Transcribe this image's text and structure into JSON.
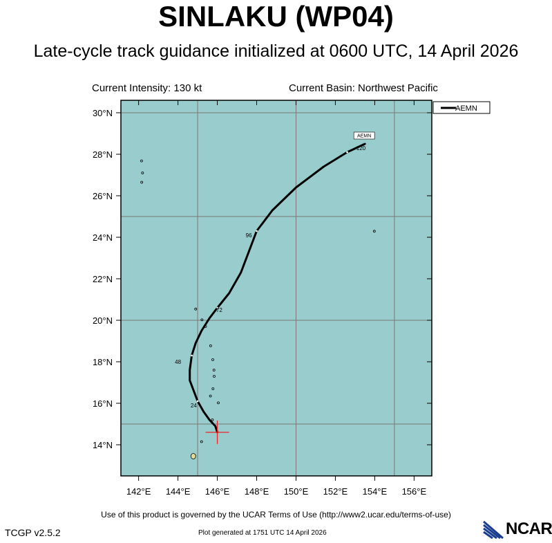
{
  "header": {
    "storm_title": "SINLAKU (WP04)",
    "subtitle": "Late-cycle track guidance initialized at 0600 UTC, 14 April 2026",
    "current_intensity": "Current Intensity: 130 kt",
    "current_basin": "Current Basin: Northwest Pacific"
  },
  "footer": {
    "terms": "Use of this product is governed by the UCAR Terms of Use (http://www2.ucar.edu/terms-of-use)",
    "version": "TCGP v2.5.2",
    "generated": "Plot generated at 1751 UTC   14 April 2026",
    "logo_text": "NCAR"
  },
  "colors": {
    "ocean": "#99cccc",
    "grid": "#777777",
    "track": "#000000",
    "current_position_marker": "#ee2222"
  },
  "chart_data": {
    "type": "scatter",
    "title": "SINLAKU (WP04)",
    "xlim": [
      141.1,
      156.9
    ],
    "ylim": [
      12.5,
      30.6
    ],
    "x_ticks": [
      142,
      144,
      146,
      148,
      150,
      152,
      154,
      156
    ],
    "x_tick_labels": [
      "142°E",
      "144°E",
      "146°E",
      "148°E",
      "150°E",
      "152°E",
      "154°E",
      "156°E"
    ],
    "y_ticks": [
      14,
      16,
      18,
      20,
      22,
      24,
      26,
      28,
      30
    ],
    "y_tick_labels": [
      "14°N",
      "16°N",
      "18°N",
      "20°N",
      "22°N",
      "24°N",
      "26°N",
      "28°N",
      "30°N"
    ],
    "grid_lon": [
      145,
      150,
      155
    ],
    "grid_lat": [
      15,
      20,
      25,
      30
    ],
    "grid": true,
    "legend": {
      "position": "top-right",
      "entries": [
        "AEMN"
      ]
    },
    "current_position": {
      "lon": 146.0,
      "lat": 14.6
    },
    "series": [
      {
        "name": "AEMN",
        "lon": [
          146.0,
          145.9,
          145.6,
          145.3,
          145.0,
          144.8,
          144.6,
          144.6,
          144.7,
          144.9,
          145.2,
          145.6,
          146.0,
          146.6,
          147.2,
          147.6,
          148.0,
          148.8,
          150.0,
          151.4,
          152.6,
          153.5
        ],
        "lat": [
          14.6,
          14.9,
          15.2,
          15.6,
          16.1,
          16.6,
          17.1,
          17.6,
          18.3,
          18.9,
          19.5,
          20.1,
          20.6,
          21.3,
          22.3,
          23.3,
          24.3,
          25.3,
          26.4,
          27.4,
          28.1,
          28.5
        ],
        "hour_labels": [
          {
            "text": "24",
            "lon": 144.8,
            "lat": 15.8
          },
          {
            "text": "48",
            "lon": 144.0,
            "lat": 17.9
          },
          {
            "text": "72",
            "lon": 146.1,
            "lat": 20.4
          },
          {
            "text": "96",
            "lon": 147.6,
            "lat": 24.0
          },
          {
            "text": "120",
            "lon": 153.3,
            "lat": 28.2
          }
        ],
        "tag": "AEMN"
      }
    ],
    "islands": [
      {
        "name": "Guam",
        "lon": 144.78,
        "lat": 13.45
      },
      {
        "name": "Rota",
        "lon": 145.2,
        "lat": 14.15
      },
      {
        "name": "Saipan",
        "lon": 145.75,
        "lat": 15.2
      },
      {
        "name": "Anatahan",
        "lon": 145.65,
        "lat": 16.35
      },
      {
        "name": "Sarigan",
        "lon": 145.78,
        "lat": 16.7
      },
      {
        "name": "Guguan",
        "lon": 145.84,
        "lat": 17.3
      },
      {
        "name": "Alamagan",
        "lon": 145.83,
        "lat": 17.6
      },
      {
        "name": "Pagan",
        "lon": 145.77,
        "lat": 18.1
      },
      {
        "name": "Agrihan",
        "lon": 145.66,
        "lat": 18.77
      },
      {
        "name": "Asuncion",
        "lon": 145.4,
        "lat": 19.7
      },
      {
        "name": "Maug",
        "lon": 145.22,
        "lat": 20.02
      },
      {
        "name": "Farallon de Pajaros",
        "lon": 144.9,
        "lat": 20.54
      },
      {
        "name": "Chichi-jima",
        "lon": 142.2,
        "lat": 27.1
      },
      {
        "name": "Haha-jima",
        "lon": 142.16,
        "lat": 26.65
      },
      {
        "name": "Muko-jima",
        "lon": 142.15,
        "lat": 27.68
      },
      {
        "name": "Minami-Torishima",
        "lon": 153.98,
        "lat": 24.29
      },
      {
        "name": "Medinilla",
        "lon": 146.05,
        "lat": 16.02
      }
    ]
  }
}
